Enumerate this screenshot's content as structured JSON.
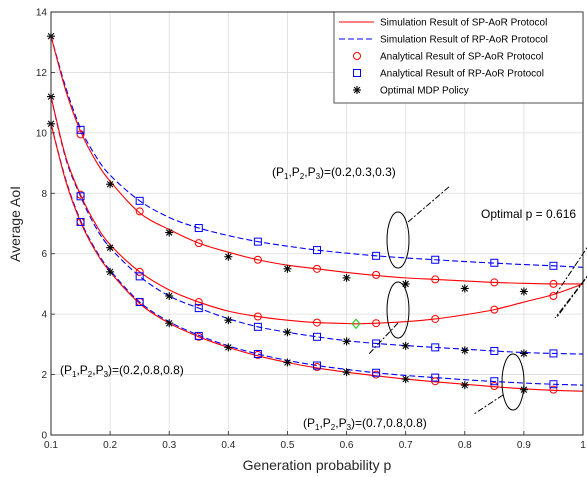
{
  "chart_data": {
    "type": "line",
    "xlabel": "Generation probability p",
    "ylabel": "Average AoI",
    "xlim": [
      0.1,
      1
    ],
    "ylim": [
      0,
      14
    ],
    "xticks": [
      0.1,
      0.2,
      0.3,
      0.4,
      0.5,
      0.6,
      0.7,
      0.8,
      0.9,
      1
    ],
    "yticks": [
      0,
      2,
      4,
      6,
      8,
      10,
      12,
      14
    ],
    "xtick_labels": [
      "0.1",
      "0.2",
      "0.3",
      "0.4",
      "0.5",
      "0.6",
      "0.7",
      "0.8",
      "0.9",
      "1"
    ],
    "ytick_labels": [
      "0",
      "2",
      "4",
      "6",
      "8",
      "10",
      "12",
      "14"
    ],
    "grid": true,
    "legend_position": "top-right",
    "colors": {
      "red": "#ff0000",
      "blue": "#0000ff",
      "black": "#000000",
      "green": "#33cc33"
    },
    "legend": [
      {
        "label": "Simulation Result of SP-AoR Protocol",
        "style": "red-solid"
      },
      {
        "label": "Simulation Result of RP-AoR Protocol",
        "style": "blue-dashed"
      },
      {
        "label": "Analytical Result of SP-AoR Protocol",
        "style": "red-circle"
      },
      {
        "label": "Analytical Result of RP-AoR Protocol",
        "style": "blue-square"
      },
      {
        "label": "Optimal MDP Policy",
        "style": "black-star"
      }
    ],
    "marker_x": [
      0.15,
      0.25,
      0.35,
      0.45,
      0.55,
      0.65,
      0.75,
      0.85,
      0.95
    ],
    "mdp_x": [
      0.1,
      0.2,
      0.3,
      0.4,
      0.5,
      0.6,
      0.7,
      0.8,
      0.9
    ],
    "groups": [
      {
        "params": "(0.2,0.3,0.3)",
        "sp_curve_x": [
          0.1,
          0.125,
          0.15,
          0.175,
          0.2,
          0.25,
          0.3,
          0.35,
          0.4,
          0.45,
          0.5,
          0.55,
          0.6,
          0.65,
          0.7,
          0.75,
          0.8,
          0.85,
          0.9,
          0.95,
          1.0
        ],
        "sp_curve_y": [
          13.2,
          11.4,
          10.05,
          9.1,
          8.4,
          7.35,
          6.8,
          6.35,
          6.05,
          5.8,
          5.62,
          5.5,
          5.38,
          5.28,
          5.2,
          5.15,
          5.1,
          5.05,
          5.02,
          5.0,
          5.0
        ],
        "rp_curve_x": [
          0.1,
          0.125,
          0.15,
          0.175,
          0.2,
          0.25,
          0.3,
          0.35,
          0.4,
          0.45,
          0.5,
          0.55,
          0.6,
          0.65,
          0.7,
          0.75,
          0.8,
          0.85,
          0.9,
          0.95,
          1.0
        ],
        "rp_curve_y": [
          13.2,
          11.5,
          10.15,
          9.25,
          8.6,
          7.75,
          7.2,
          6.85,
          6.6,
          6.4,
          6.25,
          6.12,
          6.02,
          5.93,
          5.86,
          5.8,
          5.74,
          5.69,
          5.64,
          5.6,
          5.55
        ],
        "sp_markers": [
          9.95,
          7.4,
          6.35,
          5.8,
          5.5,
          5.3,
          5.15,
          5.05,
          5.0
        ],
        "rp_markers": [
          10.1,
          7.75,
          6.85,
          6.4,
          6.12,
          5.93,
          5.8,
          5.7,
          5.6
        ],
        "mdp": [
          13.2,
          8.3,
          6.7,
          5.9,
          5.5,
          5.2,
          5.0,
          4.85,
          4.75
        ]
      },
      {
        "params": "(0.2,0.8,0.8)",
        "sp_curve_x": [
          0.1,
          0.125,
          0.15,
          0.175,
          0.2,
          0.25,
          0.3,
          0.35,
          0.4,
          0.45,
          0.5,
          0.55,
          0.6,
          0.616,
          0.65,
          0.7,
          0.75,
          0.8,
          0.85,
          0.9,
          0.95,
          1.0
        ],
        "sp_curve_y": [
          11.2,
          9.2,
          7.95,
          7.0,
          6.3,
          5.4,
          4.8,
          4.4,
          4.1,
          3.92,
          3.8,
          3.72,
          3.69,
          3.68,
          3.7,
          3.75,
          3.84,
          3.98,
          4.15,
          4.4,
          4.65,
          5.0
        ],
        "rp_curve_x": [
          0.1,
          0.125,
          0.15,
          0.175,
          0.2,
          0.25,
          0.3,
          0.35,
          0.4,
          0.45,
          0.5,
          0.55,
          0.6,
          0.65,
          0.7,
          0.75,
          0.8,
          0.85,
          0.9,
          0.95,
          1.0
        ],
        "rp_curve_y": [
          11.2,
          9.15,
          7.9,
          6.9,
          6.2,
          5.25,
          4.6,
          4.2,
          3.85,
          3.58,
          3.4,
          3.25,
          3.12,
          3.03,
          2.96,
          2.9,
          2.84,
          2.78,
          2.73,
          2.7,
          2.68
        ],
        "sp_markers": [
          7.95,
          5.4,
          4.4,
          3.92,
          3.72,
          3.7,
          3.84,
          4.15,
          4.6
        ],
        "rp_markers": [
          7.9,
          5.25,
          4.2,
          3.58,
          3.25,
          3.03,
          2.9,
          2.78,
          2.7
        ],
        "mdp": [
          11.2,
          6.2,
          4.6,
          3.8,
          3.4,
          3.1,
          2.95,
          2.8,
          2.7
        ],
        "optimal_point": {
          "x": 0.616,
          "y": 3.68
        }
      },
      {
        "params": "(0.7,0.8,0.8)",
        "sp_curve_x": [
          0.1,
          0.125,
          0.15,
          0.175,
          0.2,
          0.25,
          0.3,
          0.35,
          0.4,
          0.45,
          0.5,
          0.55,
          0.6,
          0.65,
          0.7,
          0.75,
          0.8,
          0.85,
          0.9,
          0.95,
          1.0
        ],
        "sp_curve_y": [
          10.3,
          8.4,
          7.05,
          6.1,
          5.4,
          4.35,
          3.7,
          3.25,
          2.9,
          2.62,
          2.4,
          2.22,
          2.08,
          1.96,
          1.85,
          1.76,
          1.68,
          1.6,
          1.53,
          1.48,
          1.45
        ],
        "rp_curve_x": [
          0.1,
          0.125,
          0.15,
          0.175,
          0.2,
          0.25,
          0.3,
          0.35,
          0.4,
          0.45,
          0.5,
          0.55,
          0.6,
          0.65,
          0.7,
          0.75,
          0.8,
          0.85,
          0.9,
          0.95,
          1.0
        ],
        "rp_curve_y": [
          10.3,
          8.45,
          7.1,
          6.15,
          5.45,
          4.4,
          3.75,
          3.3,
          2.95,
          2.68,
          2.47,
          2.3,
          2.17,
          2.06,
          1.97,
          1.9,
          1.83,
          1.77,
          1.72,
          1.68,
          1.65
        ],
        "sp_markers": [
          7.05,
          4.4,
          3.25,
          2.65,
          2.25,
          2.0,
          1.78,
          1.62,
          1.5
        ],
        "rp_markers": [
          7.05,
          4.4,
          3.28,
          2.68,
          2.3,
          2.06,
          1.9,
          1.78,
          1.68
        ],
        "mdp": [
          10.3,
          5.4,
          3.7,
          2.9,
          2.4,
          2.08,
          1.85,
          1.65,
          1.5
        ]
      }
    ],
    "annotations": {
      "label_a": {
        "prefix": "(P",
        "s1": "1",
        "c1": ",P",
        "s2": "2",
        "c2": ",P",
        "s3": "3",
        "suffix": ")=(0.2,0.3,0.3)"
      },
      "label_b": {
        "prefix": "(P",
        "s1": "1",
        "c1": ",P",
        "s2": "2",
        "c2": ",P",
        "s3": "3",
        "suffix": ")=(0.2,0.8,0.8)"
      },
      "label_c": {
        "prefix": "(P",
        "s1": "1",
        "c1": ",P",
        "s2": "2",
        "c2": ",P",
        "s3": "3",
        "suffix": ")=(0.7,0.8,0.8)"
      },
      "optimal_text": "Optimal p = 0.616"
    }
  }
}
